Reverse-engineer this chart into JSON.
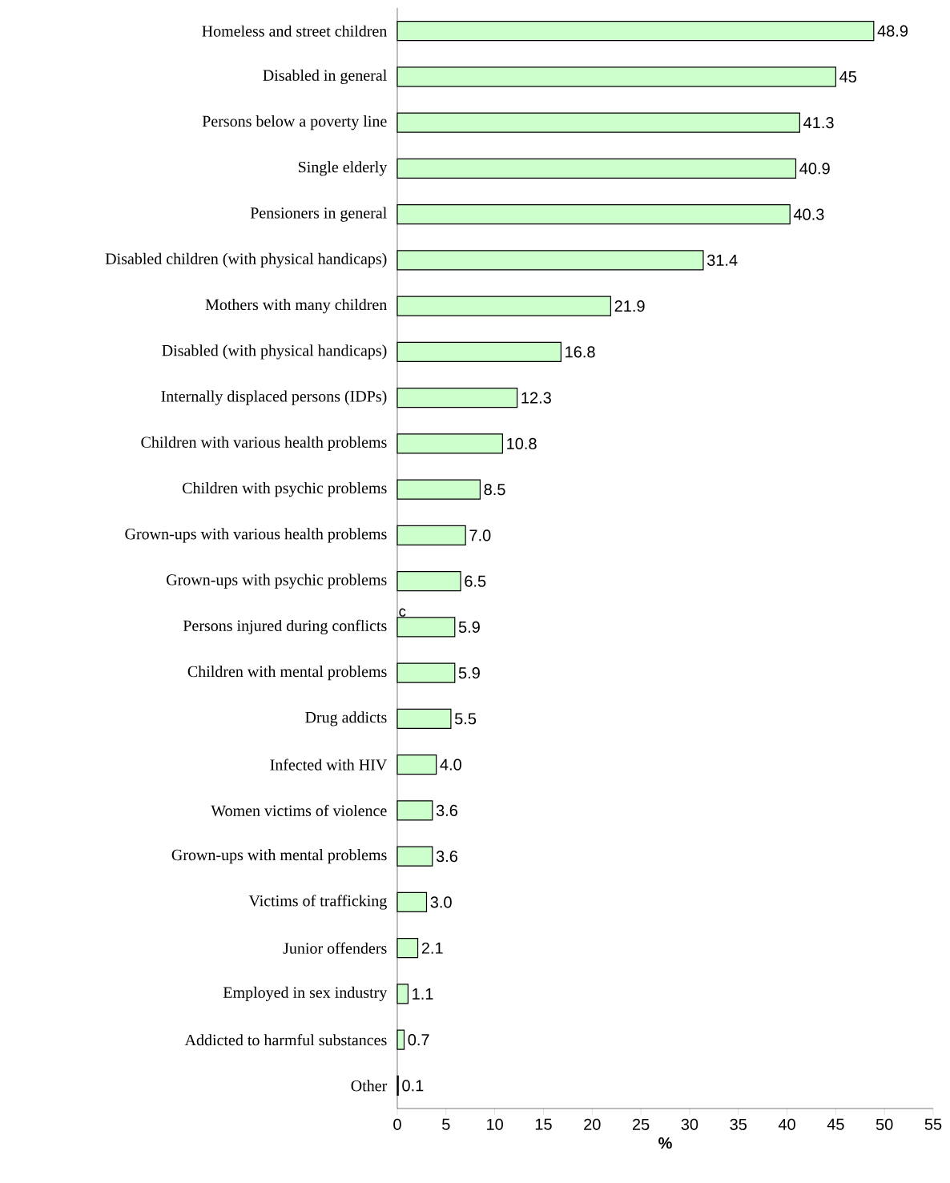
{
  "chart_data": {
    "type": "bar",
    "orientation": "horizontal",
    "xlabel": "%",
    "categories": [
      "Homeless and street children",
      "Disabled in general",
      "Persons below a poverty line",
      "Single elderly",
      "Pensioners in general",
      "Disabled children (with physical handicaps)",
      "Mothers with many children",
      "Disabled (with physical handicaps)",
      "Internally displaced persons (IDPs)",
      "Children with various health problems",
      "Children with psychic problems",
      "Grown-ups with various health problems",
      "Grown-ups with psychic problems",
      "Persons injured during conflicts",
      "Children with mental problems",
      "Drug addicts",
      "Infected with HIV",
      "Women victims of violence",
      "Grown-ups with mental problems",
      "Victims of trafficking",
      "Junior offenders",
      "Employed in sex industry",
      "Addicted to harmful substances",
      "Other"
    ],
    "values": [
      48.9,
      45,
      41.3,
      40.9,
      40.3,
      31.4,
      21.9,
      16.8,
      12.3,
      10.8,
      8.5,
      7.0,
      6.5,
      5.9,
      5.9,
      5.5,
      4.0,
      3.6,
      3.6,
      3.0,
      2.1,
      1.1,
      0.7,
      0.1
    ],
    "value_labels": [
      "48.9",
      "45",
      "41.3",
      "40.9",
      "40.3",
      "31.4",
      "21.9",
      "16.8",
      "12.3",
      "10.8",
      "8.5",
      "7.0",
      "6.5",
      "5.9",
      "5.9",
      "5.5",
      "4.0",
      "3.6",
      "3.6",
      "3.0",
      "2.1",
      "1.1",
      "0.7",
      "0.1"
    ],
    "color": "#ccffcc",
    "xlim": [
      0,
      55
    ],
    "xticks": [
      0,
      5,
      10,
      15,
      20,
      25,
      30,
      35,
      40,
      45,
      50,
      55
    ],
    "annotations": [
      "c"
    ],
    "grid": false
  }
}
